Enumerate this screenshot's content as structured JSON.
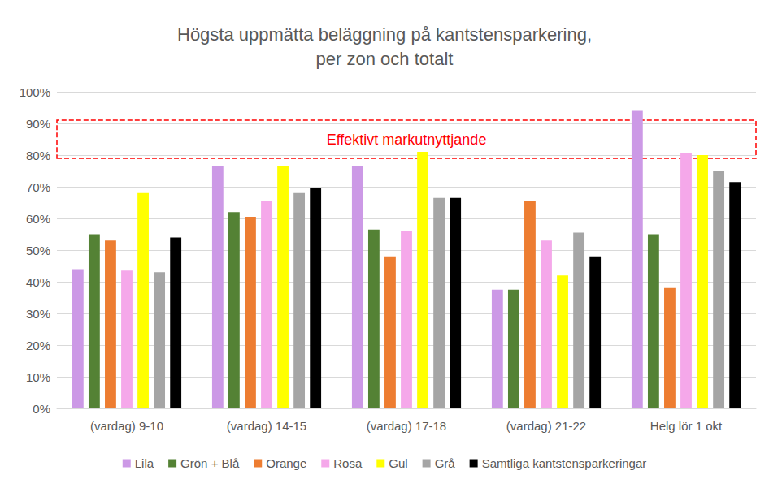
{
  "chart_data": {
    "type": "bar",
    "title": "Högsta uppmätta beläggning på kantstensparkering,\nper zon och totalt",
    "categories": [
      "(vardag) 9-10",
      "(vardag) 14-15",
      "(vardag) 17-18",
      "(vardag) 21-22",
      "Helg lör 1 okt"
    ],
    "series": [
      {
        "name": "Lila",
        "color": "#cc99e6",
        "values": [
          44,
          76.5,
          76.5,
          37.5,
          94
        ]
      },
      {
        "name": "Grön + Blå",
        "color": "#548235",
        "values": [
          55,
          62,
          56.5,
          37.5,
          55
        ]
      },
      {
        "name": "Orange",
        "color": "#ed7d31",
        "values": [
          53,
          60.5,
          48,
          65.5,
          38
        ]
      },
      {
        "name": "Rosa",
        "color": "#f5a8ea",
        "values": [
          43.5,
          65.5,
          56,
          53,
          80.5
        ]
      },
      {
        "name": "Gul",
        "color": "#ffff00",
        "values": [
          68,
          76.5,
          81,
          42,
          80
        ]
      },
      {
        "name": "Grå",
        "color": "#a5a5a5",
        "values": [
          43,
          68,
          66.5,
          55.5,
          75
        ]
      },
      {
        "name": "Samtliga kantstensparkeringar",
        "color": "#000000",
        "values": [
          54,
          69.5,
          66.5,
          48,
          71.5
        ]
      }
    ],
    "ylim": [
      0,
      100
    ],
    "yticks": [
      {
        "value": 0,
        "label": "0%"
      },
      {
        "value": 10,
        "label": "10%"
      },
      {
        "value": 20,
        "label": "20%"
      },
      {
        "value": 30,
        "label": "30%"
      },
      {
        "value": 40,
        "label": "40%"
      },
      {
        "value": 50,
        "label": "50%"
      },
      {
        "value": 60,
        "label": "60%"
      },
      {
        "value": 70,
        "label": "70%"
      },
      {
        "value": 80,
        "label": "80%"
      },
      {
        "value": 90,
        "label": "90%"
      },
      {
        "value": 100,
        "label": "100%"
      }
    ],
    "grid": true,
    "legend": "bottom",
    "annotations": [
      {
        "text": "Effektivt markutnyttjande",
        "y_range": [
          79,
          91
        ],
        "color": "#ff0000"
      }
    ]
  }
}
